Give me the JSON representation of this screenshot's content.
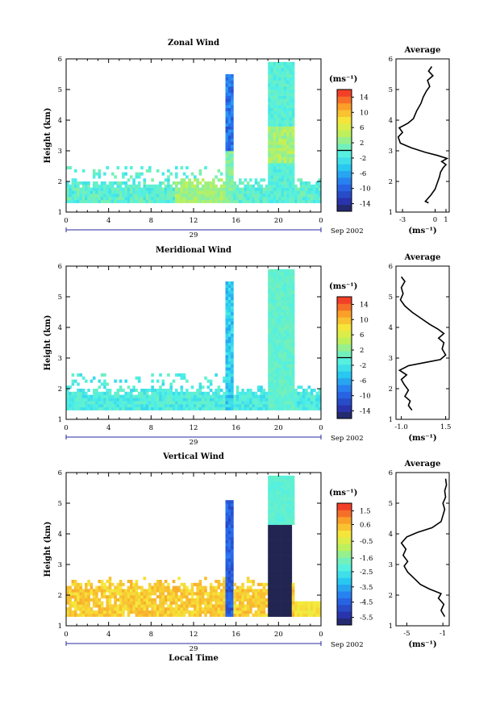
{
  "chart_data": [
    {
      "type": "heatmap",
      "title": "Zonal Wind",
      "ylabel": "Height (km)",
      "xlabel": "",
      "x_ticks": [
        "0",
        "4",
        "8",
        "12",
        "16",
        "20",
        "0"
      ],
      "y_ticks": [
        "1",
        "2",
        "3",
        "4",
        "5",
        "6"
      ],
      "xlim": [
        0,
        24
      ],
      "ylim": [
        1,
        6
      ],
      "date_tick": "29",
      "date_label": "Sep 2002",
      "colorbar": {
        "unit": "(ms⁻¹)",
        "tick_labels": [
          "14",
          "10",
          "6",
          "2",
          "-2",
          "-6",
          "-10",
          "-14"
        ],
        "range": [
          -16,
          16
        ],
        "zero_line": 0
      },
      "profile": {
        "title": "Average",
        "xlabel": "(ms⁻¹)",
        "x_ticks": [
          "-3",
          "0",
          "1"
        ],
        "x_tick_values": [
          -3,
          0,
          1
        ],
        "xlim": [
          -3.6,
          1.3
        ],
        "y_ticks": [
          "1",
          "2",
          "3",
          "4",
          "5",
          "6"
        ],
        "ylim": [
          1,
          6
        ],
        "points": [
          [
            -0.6,
            1.3
          ],
          [
            -0.9,
            1.35
          ],
          [
            -0.4,
            1.55
          ],
          [
            0.0,
            1.75
          ],
          [
            0.2,
            1.95
          ],
          [
            0.4,
            2.15
          ],
          [
            0.5,
            2.3
          ],
          [
            0.75,
            2.45
          ],
          [
            1.0,
            2.55
          ],
          [
            0.6,
            2.65
          ],
          [
            1.1,
            2.75
          ],
          [
            0.2,
            2.85
          ],
          [
            -0.9,
            2.95
          ],
          [
            -2.2,
            3.1
          ],
          [
            -3.2,
            3.25
          ],
          [
            -3.4,
            3.45
          ],
          [
            -3.0,
            3.6
          ],
          [
            -3.3,
            3.75
          ],
          [
            -2.5,
            3.9
          ],
          [
            -2.0,
            4.05
          ],
          [
            -1.7,
            4.3
          ],
          [
            -1.3,
            4.55
          ],
          [
            -1.1,
            4.75
          ],
          [
            -0.8,
            4.95
          ],
          [
            -0.5,
            5.1
          ],
          [
            -0.7,
            5.3
          ],
          [
            -0.2,
            5.45
          ],
          [
            -0.6,
            5.6
          ],
          [
            -0.3,
            5.75
          ]
        ]
      }
    },
    {
      "type": "heatmap",
      "title": "Meridional Wind",
      "ylabel": "Height (km)",
      "xlabel": "",
      "x_ticks": [
        "0",
        "4",
        "8",
        "12",
        "16",
        "20",
        "0"
      ],
      "y_ticks": [
        "1",
        "2",
        "3",
        "4",
        "5",
        "6"
      ],
      "xlim": [
        0,
        24
      ],
      "ylim": [
        1,
        6
      ],
      "date_tick": "29",
      "date_label": "Sep 2002",
      "colorbar": {
        "unit": "(ms⁻¹)",
        "tick_labels": [
          "14",
          "10",
          "6",
          "2",
          "-2",
          "-6",
          "-10",
          "-14"
        ],
        "range": [
          -16,
          16
        ],
        "zero_line": 0
      },
      "profile": {
        "title": "Average",
        "xlabel": "(ms⁻¹)",
        "x_ticks": [
          "-1.0",
          "1.5"
        ],
        "x_tick_values": [
          -1.0,
          1.5
        ],
        "xlim": [
          -1.3,
          1.7
        ],
        "y_ticks": [
          "1",
          "2",
          "3",
          "4",
          "5",
          "6"
        ],
        "ylim": [
          1,
          6
        ],
        "points": [
          [
            -0.4,
            1.3
          ],
          [
            -0.6,
            1.45
          ],
          [
            -0.5,
            1.6
          ],
          [
            -0.8,
            1.75
          ],
          [
            -0.6,
            1.95
          ],
          [
            -0.85,
            2.15
          ],
          [
            -1.0,
            2.3
          ],
          [
            -0.7,
            2.45
          ],
          [
            -1.1,
            2.6
          ],
          [
            -0.6,
            2.75
          ],
          [
            0.3,
            2.85
          ],
          [
            1.2,
            2.95
          ],
          [
            1.5,
            3.1
          ],
          [
            1.3,
            3.3
          ],
          [
            1.4,
            3.5
          ],
          [
            1.1,
            3.65
          ],
          [
            1.4,
            3.8
          ],
          [
            1.05,
            3.95
          ],
          [
            0.6,
            4.1
          ],
          [
            0.1,
            4.3
          ],
          [
            -0.4,
            4.5
          ],
          [
            -0.8,
            4.7
          ],
          [
            -1.05,
            4.9
          ],
          [
            -0.9,
            5.1
          ],
          [
            -1.0,
            5.3
          ],
          [
            -0.8,
            5.5
          ],
          [
            -1.0,
            5.65
          ]
        ]
      }
    },
    {
      "type": "heatmap",
      "title": "Vertical Wind",
      "ylabel": "Height (km)",
      "xlabel": "Local Time",
      "x_ticks": [
        "0",
        "4",
        "8",
        "12",
        "16",
        "20",
        "0"
      ],
      "y_ticks": [
        "1",
        "2",
        "3",
        "4",
        "5",
        "6"
      ],
      "xlim": [
        0,
        24
      ],
      "ylim": [
        1,
        6
      ],
      "date_tick": "29",
      "date_label": "Sep 2002",
      "colorbar": {
        "unit": "(ms⁻¹)",
        "tick_labels": [
          "1.5",
          "0.6",
          "-0.5",
          "-1.6",
          "-2.5",
          "-3.5",
          "-4.5",
          "-5.5"
        ],
        "range": [
          -6,
          2
        ],
        "zero_line": null
      },
      "profile": {
        "title": "Average",
        "xlabel": "(ms⁻¹)",
        "x_ticks": [
          "-5",
          "-1"
        ],
        "x_tick_values": [
          -5,
          -1
        ],
        "xlim": [
          -6.2,
          -0.3
        ],
        "y_ticks": [
          "1",
          "2",
          "3",
          "4",
          "5",
          "6"
        ],
        "ylim": [
          1,
          6
        ],
        "points": [
          [
            -0.8,
            1.3
          ],
          [
            -1.2,
            1.5
          ],
          [
            -0.9,
            1.7
          ],
          [
            -1.5,
            1.9
          ],
          [
            -1.2,
            2.05
          ],
          [
            -2.5,
            2.2
          ],
          [
            -3.5,
            2.35
          ],
          [
            -4.2,
            2.55
          ],
          [
            -4.9,
            2.75
          ],
          [
            -5.3,
            2.95
          ],
          [
            -4.9,
            3.1
          ],
          [
            -5.4,
            3.3
          ],
          [
            -5.1,
            3.5
          ],
          [
            -5.6,
            3.7
          ],
          [
            -5.0,
            3.9
          ],
          [
            -3.8,
            4.05
          ],
          [
            -2.2,
            4.2
          ],
          [
            -1.2,
            4.4
          ],
          [
            -1.0,
            4.6
          ],
          [
            -0.8,
            4.8
          ],
          [
            -1.0,
            5.0
          ],
          [
            -0.7,
            5.2
          ],
          [
            -0.8,
            5.4
          ],
          [
            -0.6,
            5.6
          ],
          [
            -0.7,
            5.8
          ]
        ]
      }
    }
  ]
}
